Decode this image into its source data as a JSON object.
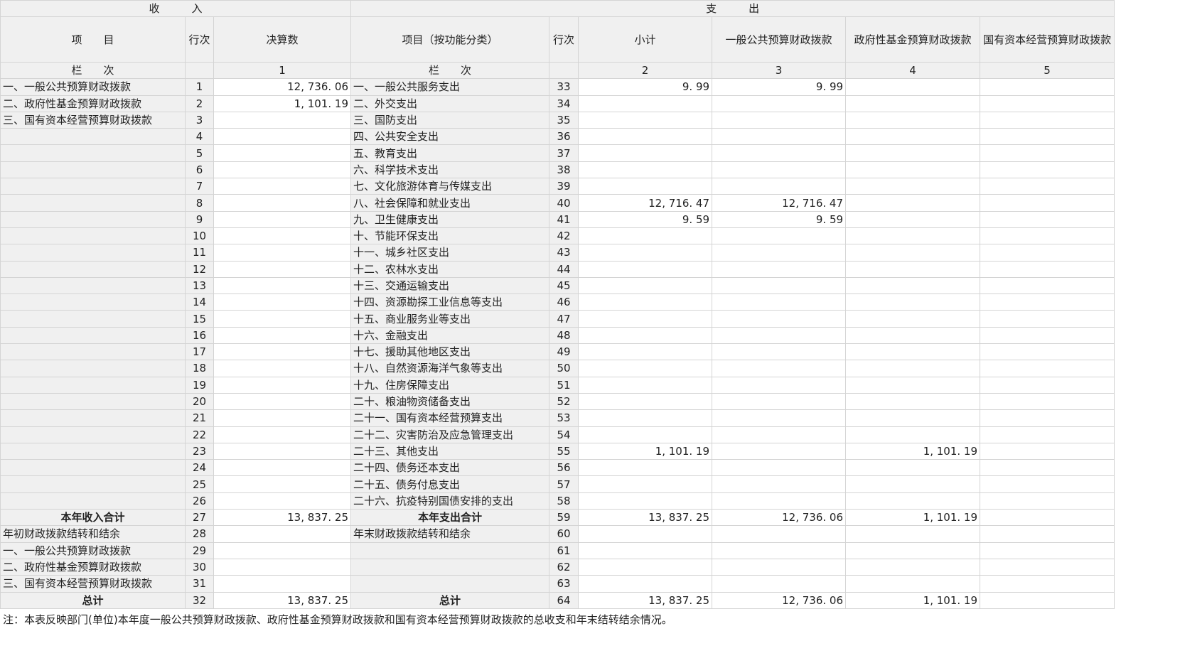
{
  "header": {
    "income": "收　　　入",
    "expense": "支　　　出",
    "cols": [
      "项　　目",
      "行次",
      "决算数",
      "项目（按功能分类）",
      "行次",
      "小计",
      "一般公共预算财政拨款",
      "政府性基金预算财政拨款",
      "国有资本经营预算财政拨款"
    ],
    "lanci": "栏　　次",
    "lanci_nums": [
      "1",
      "2",
      "3",
      "4",
      "5"
    ]
  },
  "rows": [
    {
      "il": "一、一般公共预算财政拨款",
      "in": "1",
      "iv": "12, 736. 06",
      "el": "一、一般公共服务支出",
      "en": "33",
      "s": "9. 99",
      "g": "9. 99",
      "f": "",
      "n": ""
    },
    {
      "il": "二、政府性基金预算财政拨款",
      "in": "2",
      "iv": "1, 101. 19",
      "el": "二、外交支出",
      "en": "34",
      "s": "",
      "g": "",
      "f": "",
      "n": ""
    },
    {
      "il": "三、国有资本经营预算财政拨款",
      "in": "3",
      "iv": "",
      "el": "三、国防支出",
      "en": "35",
      "s": "",
      "g": "",
      "f": "",
      "n": ""
    },
    {
      "il": "",
      "in": "4",
      "iv": "",
      "el": "四、公共安全支出",
      "en": "36",
      "s": "",
      "g": "",
      "f": "",
      "n": ""
    },
    {
      "il": "",
      "in": "5",
      "iv": "",
      "el": "五、教育支出",
      "en": "37",
      "s": "",
      "g": "",
      "f": "",
      "n": ""
    },
    {
      "il": "",
      "in": "6",
      "iv": "",
      "el": "六、科学技术支出",
      "en": "38",
      "s": "",
      "g": "",
      "f": "",
      "n": ""
    },
    {
      "il": "",
      "in": "7",
      "iv": "",
      "el": "七、文化旅游体育与传媒支出",
      "en": "39",
      "s": "",
      "g": "",
      "f": "",
      "n": ""
    },
    {
      "il": "",
      "in": "8",
      "iv": "",
      "el": "八、社会保障和就业支出",
      "en": "40",
      "s": "12, 716. 47",
      "g": "12, 716. 47",
      "f": "",
      "n": ""
    },
    {
      "il": "",
      "in": "9",
      "iv": "",
      "el": "九、卫生健康支出",
      "en": "41",
      "s": "9. 59",
      "g": "9. 59",
      "f": "",
      "n": ""
    },
    {
      "il": "",
      "in": "10",
      "iv": "",
      "el": "十、节能环保支出",
      "en": "42",
      "s": "",
      "g": "",
      "f": "",
      "n": ""
    },
    {
      "il": "",
      "in": "11",
      "iv": "",
      "el": "十一、城乡社区支出",
      "en": "43",
      "s": "",
      "g": "",
      "f": "",
      "n": ""
    },
    {
      "il": "",
      "in": "12",
      "iv": "",
      "el": "十二、农林水支出",
      "en": "44",
      "s": "",
      "g": "",
      "f": "",
      "n": ""
    },
    {
      "il": "",
      "in": "13",
      "iv": "",
      "el": "十三、交通运输支出",
      "en": "45",
      "s": "",
      "g": "",
      "f": "",
      "n": ""
    },
    {
      "il": "",
      "in": "14",
      "iv": "",
      "el": "十四、资源勘探工业信息等支出",
      "en": "46",
      "s": "",
      "g": "",
      "f": "",
      "n": ""
    },
    {
      "il": "",
      "in": "15",
      "iv": "",
      "el": "十五、商业服务业等支出",
      "en": "47",
      "s": "",
      "g": "",
      "f": "",
      "n": ""
    },
    {
      "il": "",
      "in": "16",
      "iv": "",
      "el": "十六、金融支出",
      "en": "48",
      "s": "",
      "g": "",
      "f": "",
      "n": ""
    },
    {
      "il": "",
      "in": "17",
      "iv": "",
      "el": "十七、援助其他地区支出",
      "en": "49",
      "s": "",
      "g": "",
      "f": "",
      "n": ""
    },
    {
      "il": "",
      "in": "18",
      "iv": "",
      "el": "十八、自然资源海洋气象等支出",
      "en": "50",
      "s": "",
      "g": "",
      "f": "",
      "n": ""
    },
    {
      "il": "",
      "in": "19",
      "iv": "",
      "el": "十九、住房保障支出",
      "en": "51",
      "s": "",
      "g": "",
      "f": "",
      "n": ""
    },
    {
      "il": "",
      "in": "20",
      "iv": "",
      "el": "二十、粮油物资储备支出",
      "en": "52",
      "s": "",
      "g": "",
      "f": "",
      "n": ""
    },
    {
      "il": "",
      "in": "21",
      "iv": "",
      "el": "二十一、国有资本经营预算支出",
      "en": "53",
      "s": "",
      "g": "",
      "f": "",
      "n": ""
    },
    {
      "il": "",
      "in": "22",
      "iv": "",
      "el": "二十二、灾害防治及应急管理支出",
      "en": "54",
      "s": "",
      "g": "",
      "f": "",
      "n": ""
    },
    {
      "il": "",
      "in": "23",
      "iv": "",
      "el": "二十三、其他支出",
      "en": "55",
      "s": "1, 101. 19",
      "g": "",
      "f": "1, 101. 19",
      "n": ""
    },
    {
      "il": "",
      "in": "24",
      "iv": "",
      "el": "二十四、债务还本支出",
      "en": "56",
      "s": "",
      "g": "",
      "f": "",
      "n": ""
    },
    {
      "il": "",
      "in": "25",
      "iv": "",
      "el": "二十五、债务付息支出",
      "en": "57",
      "s": "",
      "g": "",
      "f": "",
      "n": ""
    },
    {
      "il": "",
      "in": "26",
      "iv": "",
      "el": "二十六、抗疫特别国债安排的支出",
      "en": "58",
      "s": "",
      "g": "",
      "f": "",
      "n": ""
    },
    {
      "il": "本年收入合计",
      "in": "27",
      "iv": "13, 837. 25",
      "el": "本年支出合计",
      "en": "59",
      "s": "13, 837. 25",
      "g": "12, 736. 06",
      "f": "1, 101. 19",
      "n": "",
      "bold": true
    },
    {
      "il": "年初财政拨款结转和结余",
      "in": "28",
      "iv": "",
      "el": "年末财政拨款结转和结余",
      "en": "60",
      "s": "",
      "g": "",
      "f": "",
      "n": ""
    },
    {
      "il": "一、一般公共预算财政拨款",
      "in": "29",
      "iv": "",
      "el": "",
      "en": "61",
      "s": "",
      "g": "",
      "f": "",
      "n": ""
    },
    {
      "il": "二、政府性基金预算财政拨款",
      "in": "30",
      "iv": "",
      "el": "",
      "en": "62",
      "s": "",
      "g": "",
      "f": "",
      "n": ""
    },
    {
      "il": "三、国有资本经营预算财政拨款",
      "in": "31",
      "iv": "",
      "el": "",
      "en": "63",
      "s": "",
      "g": "",
      "f": "",
      "n": ""
    },
    {
      "il": "总计",
      "in": "32",
      "iv": "13, 837. 25",
      "el": "总计",
      "en": "64",
      "s": "13, 837. 25",
      "g": "12, 736. 06",
      "f": "1, 101. 19",
      "n": "",
      "bold": true
    }
  ],
  "note": "注：本表反映部门(单位)本年度一般公共预算财政拨款、政府性基金预算财政拨款和国有资本经营预算财政拨款的总收支和年末结转结余情况。"
}
